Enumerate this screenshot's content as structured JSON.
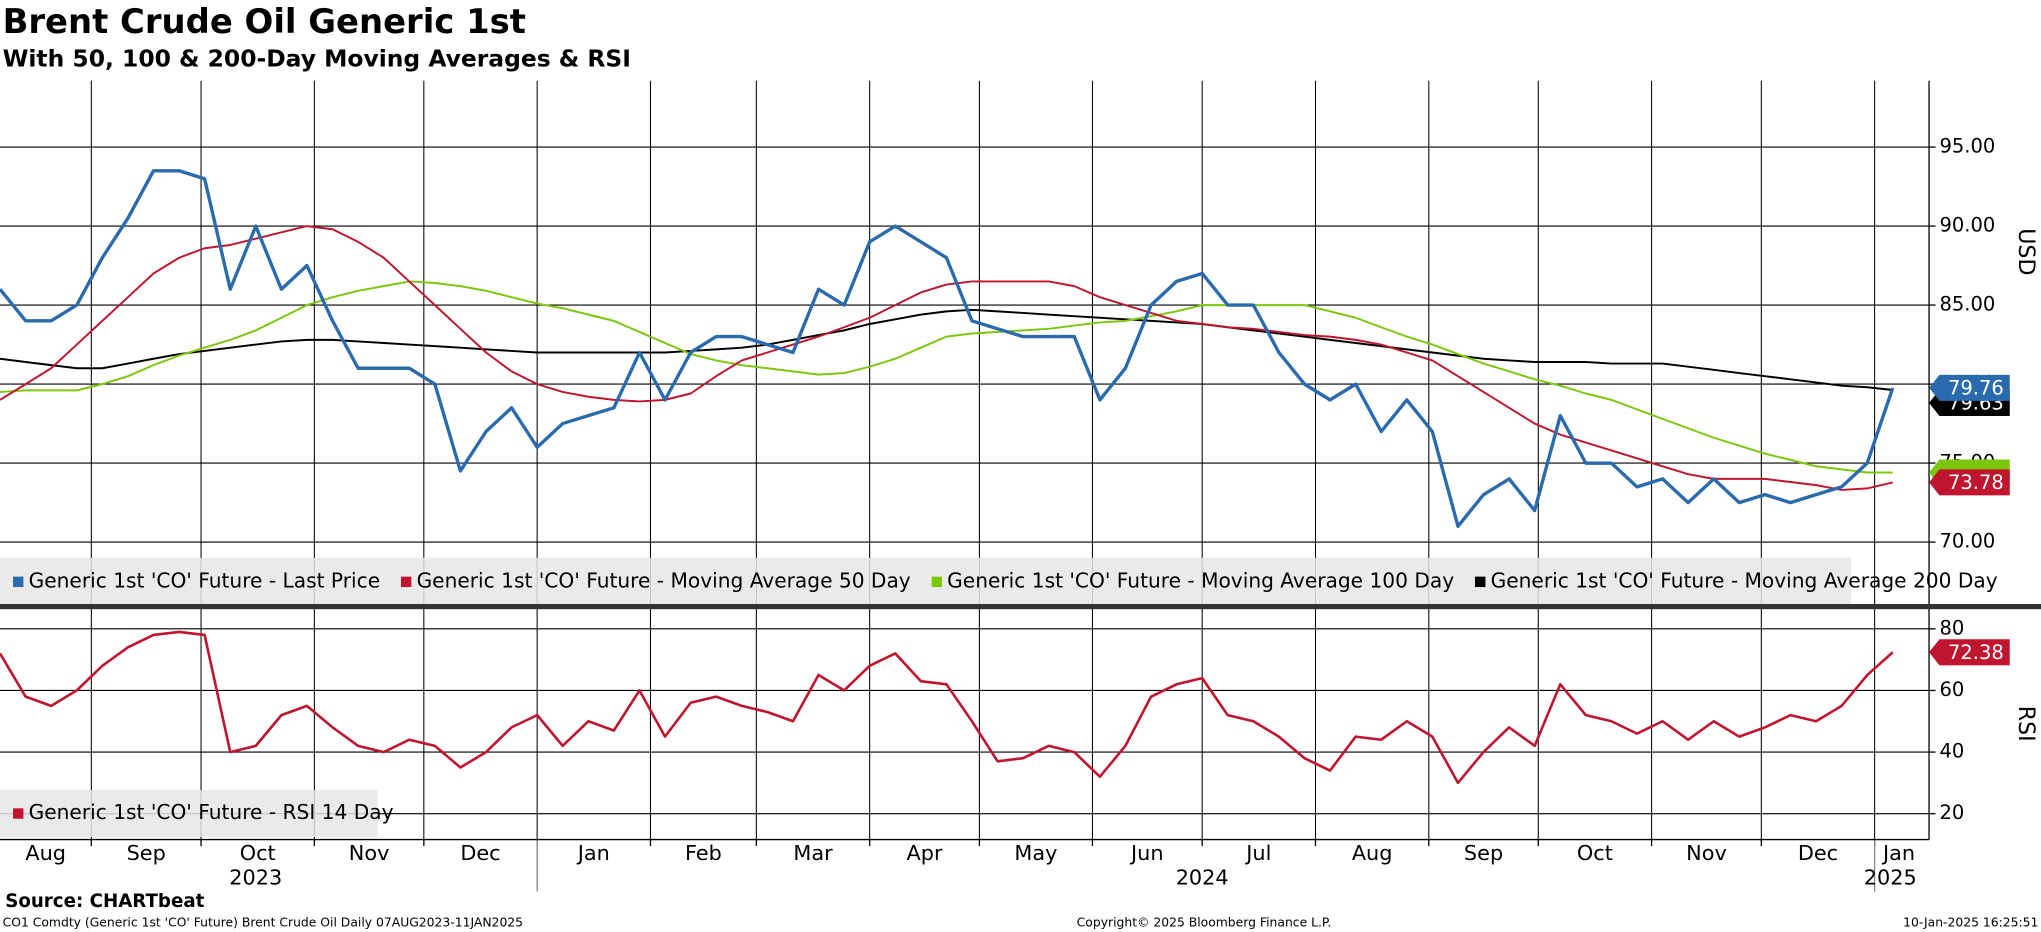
{
  "chart_data": [
    {
      "type": "line",
      "title": "Brent Crude Oil Generic 1st",
      "subtitle": "With 50, 100 & 200-Day Moving Averages & RSI",
      "ylabel": "USD",
      "xlim": [
        0,
        74.4
      ],
      "ylim": [
        66,
        99.2
      ],
      "yticks": [
        {
          "value": 70,
          "label": "70.00"
        },
        {
          "value": 75,
          "label": "75.00"
        },
        {
          "value": 80,
          "label": "80.00"
        },
        {
          "value": 85,
          "label": "85.00"
        },
        {
          "value": 90,
          "label": "90.00"
        },
        {
          "value": 95,
          "label": "95.00"
        }
      ],
      "grid": true,
      "legend": "bottom-left",
      "series": [
        {
          "name": "Generic 1st 'CO' Future - Moving Average 200 Day",
          "color": "#000000",
          "last_value_label": "79.63",
          "values": [
            81.6,
            81.4,
            81.2,
            81,
            81,
            81.3,
            81.6,
            81.9,
            82.1,
            82.3,
            82.5,
            82.7,
            82.8,
            82.8,
            82.7,
            82.6,
            82.5,
            82.4,
            82.3,
            82.2,
            82.1,
            82,
            82,
            82,
            82,
            82,
            82,
            82.1,
            82.2,
            82.3,
            82.5,
            82.8,
            83.1,
            83.4,
            83.8,
            84.1,
            84.4,
            84.6,
            84.7,
            84.6,
            84.5,
            84.4,
            84.3,
            84.2,
            84.1,
            84,
            83.9,
            83.8,
            83.6,
            83.4,
            83.2,
            83,
            82.8,
            82.6,
            82.4,
            82.2,
            82,
            81.8,
            81.6,
            81.5,
            81.4,
            81.4,
            81.4,
            81.3,
            81.3,
            81.3,
            81.1,
            80.9,
            80.7,
            80.5,
            80.3,
            80.1,
            79.9,
            79.8,
            79.63
          ]
        },
        {
          "name": "Generic 1st 'CO' Future - Moving Average 100 Day",
          "color": "#7ac70c",
          "values": [
            79.5,
            79.6,
            79.6,
            79.6,
            80,
            80.5,
            81.2,
            81.8,
            82.3,
            82.8,
            83.4,
            84.2,
            85,
            85.5,
            85.9,
            86.2,
            86.5,
            86.4,
            86.2,
            85.9,
            85.5,
            85.1,
            84.8,
            84.4,
            84,
            83.3,
            82.6,
            81.9,
            81.5,
            81.2,
            81,
            80.8,
            80.6,
            80.7,
            81.1,
            81.6,
            82.3,
            83,
            83.2,
            83.3,
            83.4,
            83.5,
            83.7,
            83.9,
            84,
            84.3,
            84.6,
            85,
            85,
            85,
            85,
            85,
            84.6,
            84.2,
            83.6,
            83,
            82.5,
            81.9,
            81.3,
            80.8,
            80.3,
            79.9,
            79.4,
            79,
            78.4,
            77.8,
            77.2,
            76.6,
            76.1,
            75.6,
            75.2,
            74.8,
            74.6,
            74.4,
            74.4
          ]
        },
        {
          "name": "Generic 1st 'CO' Future - Moving Average 50 Day",
          "color": "#c0152f",
          "last_value_label": "73.78",
          "values": [
            79,
            80,
            81,
            82.5,
            84,
            85.5,
            87,
            88,
            88.6,
            88.8,
            89.2,
            89.6,
            90,
            89.8,
            89,
            88,
            86.5,
            85,
            83.5,
            82,
            80.8,
            80,
            79.5,
            79.2,
            79,
            78.9,
            79,
            79.4,
            80.5,
            81.5,
            82,
            82.5,
            83,
            83.6,
            84.2,
            85,
            85.8,
            86.3,
            86.5,
            86.5,
            86.5,
            86.5,
            86.2,
            85.5,
            85,
            84.5,
            84,
            83.8,
            83.6,
            83.5,
            83.3,
            83.1,
            83,
            82.8,
            82.5,
            82,
            81.5,
            80.5,
            79.5,
            78.5,
            77.5,
            76.8,
            76.3,
            75.8,
            75.3,
            74.8,
            74.3,
            74,
            74,
            74,
            73.8,
            73.6,
            73.3,
            73.4,
            73.78
          ]
        },
        {
          "name": "Generic 1st 'CO' Future - Last Price",
          "color": "#2a6bad",
          "last_value_label": "79.76",
          "values": [
            86,
            84,
            84,
            85,
            88,
            90.5,
            93.5,
            93.5,
            93,
            86,
            90,
            86,
            87.5,
            84,
            81,
            81,
            81,
            80,
            74.5,
            77,
            78.5,
            76,
            77.5,
            78,
            78.5,
            82,
            79,
            82,
            83,
            83,
            82.5,
            82,
            86,
            85,
            89,
            90,
            89,
            88,
            84,
            83.5,
            83,
            83,
            83,
            79,
            81,
            85,
            86.5,
            87,
            85,
            85,
            82,
            80,
            79,
            80,
            77,
            79,
            77,
            71,
            73,
            74,
            72,
            78,
            75,
            75,
            73.5,
            74,
            72.5,
            74,
            72.5,
            73,
            72.5,
            73,
            73.5,
            75,
            79.76
          ]
        }
      ],
      "legend_order": [
        3,
        2,
        1,
        0
      ]
    },
    {
      "type": "line",
      "ylabel": "RSI",
      "xlim": [
        0,
        74.4
      ],
      "ylim": [
        11.6,
        86.8
      ],
      "yticks": [
        20,
        40,
        60,
        80
      ],
      "grid": true,
      "legend": "bottom-left",
      "xticks": [
        {
          "value": -0.86,
          "label": "Aug"
        },
        {
          "value": 3.57,
          "label": "Sep"
        },
        {
          "value": 7.86,
          "label": "Oct"
        },
        {
          "value": 12.29,
          "label": "Nov"
        },
        {
          "value": 16.57,
          "label": "Dec"
        },
        {
          "value": 21,
          "label": "Jan"
        },
        {
          "value": 25.43,
          "label": "Feb"
        },
        {
          "value": 29.57,
          "label": "Mar"
        },
        {
          "value": 34,
          "label": "Apr"
        },
        {
          "value": 38.29,
          "label": "May"
        },
        {
          "value": 42.71,
          "label": "Jun"
        },
        {
          "value": 47,
          "label": "Jul"
        },
        {
          "value": 51.43,
          "label": "Aug"
        },
        {
          "value": 55.86,
          "label": "Sep"
        },
        {
          "value": 60.14,
          "label": "Oct"
        },
        {
          "value": 64.57,
          "label": "Nov"
        },
        {
          "value": 68.86,
          "label": "Dec"
        },
        {
          "value": 73.29,
          "label": "Jan"
        }
      ],
      "years": [
        {
          "value": 10,
          "label": "2023"
        },
        {
          "value": 47,
          "label": "2024"
        },
        {
          "value": 73.9,
          "label": "2025"
        }
      ],
      "series": [
        {
          "name": "Generic 1st 'CO' Future - RSI 14 Day",
          "color": "#c0152f",
          "last_value_label": "72.38",
          "values": [
            72,
            58,
            55,
            60,
            68,
            74,
            78,
            79,
            78,
            40,
            42,
            52,
            55,
            48,
            42,
            40,
            44,
            42,
            35,
            40,
            48,
            52,
            42,
            50,
            47,
            60,
            45,
            56,
            58,
            55,
            53,
            50,
            65,
            60,
            68,
            72,
            63,
            62,
            50,
            37,
            38,
            42,
            40,
            32,
            42,
            58,
            62,
            64,
            52,
            50,
            45,
            38,
            34,
            45,
            44,
            50,
            45,
            30,
            40,
            48,
            42,
            62,
            52,
            50,
            46,
            50,
            44,
            50,
            45,
            48,
            52,
            50,
            55,
            65,
            72.38
          ]
        }
      ]
    }
  ],
  "footer": {
    "source": "Source: CHARTbeat",
    "ticker": "CO1 Comdty (Generic 1st 'CO' Future) Brent Crude Oil  Daily 07AUG2023-11JAN2025",
    "copyright": "Copyright© 2025 Bloomberg Finance L.P.",
    "timestamp": "10-Jan-2025 16:25:51"
  }
}
